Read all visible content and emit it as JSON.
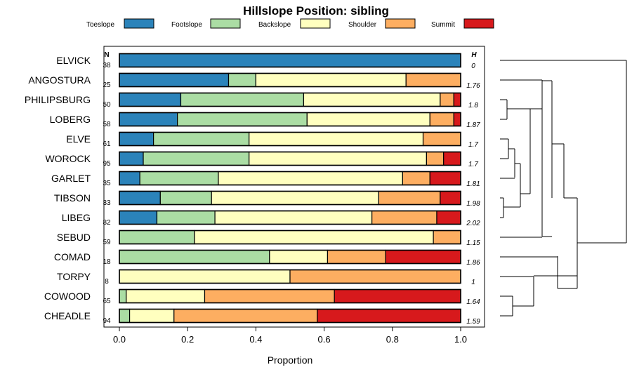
{
  "chart_data": {
    "type": "bar",
    "stacked": true,
    "orientation": "horizontal",
    "title": "Hillslope Position: sibling",
    "xlabel": "Proportion",
    "ylabel": "",
    "xlim": [
      0,
      1
    ],
    "xticks": [
      "0.0",
      "0.2",
      "0.4",
      "0.6",
      "0.8",
      "1.0"
    ],
    "n_header": "N",
    "h_header": "H",
    "legend_position": "top",
    "series": [
      {
        "name": "Toeslope",
        "color": "#2b83ba"
      },
      {
        "name": "Footslope",
        "color": "#abdda4"
      },
      {
        "name": "Backslope",
        "color": "#ffffbf"
      },
      {
        "name": "Shoulder",
        "color": "#fdae61"
      },
      {
        "name": "Summit",
        "color": "#d7191c"
      }
    ],
    "rows": [
      {
        "label": "ELVICK",
        "n": "38",
        "h": "0",
        "values": [
          1.0,
          0.0,
          0.0,
          0.0,
          0.0
        ]
      },
      {
        "label": "ANGOSTURA",
        "n": "25",
        "h": "1.76",
        "values": [
          0.32,
          0.08,
          0.44,
          0.16,
          0.0
        ]
      },
      {
        "label": "PHILIPSBURG",
        "n": "50",
        "h": "1.8",
        "values": [
          0.18,
          0.36,
          0.4,
          0.04,
          0.02
        ]
      },
      {
        "label": "LOBERG",
        "n": "58",
        "h": "1.87",
        "values": [
          0.17,
          0.38,
          0.36,
          0.07,
          0.02
        ]
      },
      {
        "label": "ELVE",
        "n": "61",
        "h": "1.7",
        "values": [
          0.1,
          0.28,
          0.51,
          0.11,
          0.0
        ]
      },
      {
        "label": "WOROCK",
        "n": "95",
        "h": "1.7",
        "values": [
          0.07,
          0.31,
          0.52,
          0.05,
          0.05
        ]
      },
      {
        "label": "GARLET",
        "n": "35",
        "h": "1.81",
        "values": [
          0.06,
          0.23,
          0.54,
          0.08,
          0.09
        ]
      },
      {
        "label": "TIBSON",
        "n": "33",
        "h": "1.98",
        "values": [
          0.12,
          0.15,
          0.49,
          0.18,
          0.06
        ]
      },
      {
        "label": "LIBEG",
        "n": "82",
        "h": "2.02",
        "values": [
          0.11,
          0.17,
          0.46,
          0.19,
          0.07
        ]
      },
      {
        "label": "SEBUD",
        "n": "59",
        "h": "1.15",
        "values": [
          0.0,
          0.22,
          0.7,
          0.08,
          0.0
        ]
      },
      {
        "label": "COMAD",
        "n": "18",
        "h": "1.86",
        "values": [
          0.0,
          0.44,
          0.17,
          0.17,
          0.22
        ]
      },
      {
        "label": "TORPY",
        "n": "8",
        "h": "1",
        "values": [
          0.0,
          0.0,
          0.5,
          0.5,
          0.0
        ]
      },
      {
        "label": "COWOOD",
        "n": "65",
        "h": "1.64",
        "values": [
          0.0,
          0.02,
          0.23,
          0.38,
          0.37
        ]
      },
      {
        "label": "CHEADLE",
        "n": "94",
        "h": "1.59",
        "values": [
          0.0,
          0.03,
          0.13,
          0.42,
          0.42
        ]
      }
    ],
    "dendrogram": true
  }
}
